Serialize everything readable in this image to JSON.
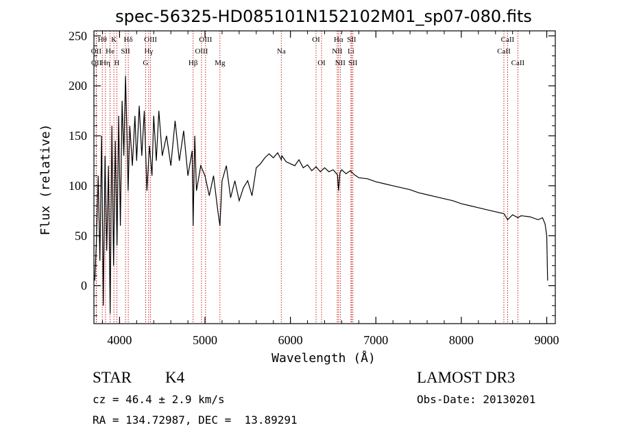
{
  "chart_data": {
    "type": "line",
    "title": "spec-56325-HD085101N152102M01_sp07-080.fits",
    "xlabel": "Wavelength (Å)",
    "ylabel": "Flux (relative)",
    "xlim": [
      3700,
      9100
    ],
    "ylim": [
      -38,
      255
    ],
    "xticks": [
      4000,
      5000,
      6000,
      7000,
      8000,
      9000
    ],
    "yticks": [
      0,
      50,
      100,
      150,
      200,
      250
    ],
    "line_color": "#000000",
    "marker_color": "#c00000",
    "series": [
      {
        "name": "flux",
        "x": [
          3710,
          3730,
          3750,
          3770,
          3790,
          3810,
          3830,
          3850,
          3870,
          3890,
          3910,
          3930,
          3950,
          3970,
          3990,
          4010,
          4030,
          4050,
          4070,
          4090,
          4100,
          4120,
          4150,
          4180,
          4200,
          4230,
          4260,
          4290,
          4320,
          4350,
          4380,
          4400,
          4430,
          4460,
          4500,
          4550,
          4600,
          4650,
          4700,
          4750,
          4800,
          4850,
          4861,
          4880,
          4900,
          4950,
          5000,
          5050,
          5100,
          5150,
          5175,
          5200,
          5250,
          5300,
          5350,
          5400,
          5450,
          5500,
          5550,
          5600,
          5650,
          5700,
          5750,
          5800,
          5850,
          5893,
          5900,
          5950,
          6000,
          6050,
          6100,
          6150,
          6200,
          6250,
          6300,
          6350,
          6400,
          6450,
          6500,
          6550,
          6563,
          6580,
          6600,
          6650,
          6700,
          6750,
          6800,
          6900,
          7000,
          7100,
          7200,
          7300,
          7400,
          7500,
          7600,
          7700,
          7800,
          7900,
          8000,
          8100,
          8200,
          8300,
          8400,
          8500,
          8542,
          8600,
          8662,
          8700,
          8800,
          8900,
          8950,
          8980,
          9000,
          9010
        ],
        "y": [
          5,
          45,
          110,
          25,
          150,
          -20,
          130,
          35,
          120,
          -28,
          160,
          20,
          145,
          40,
          170,
          60,
          185,
          130,
          210,
          140,
          95,
          160,
          120,
          170,
          125,
          180,
          130,
          175,
          95,
          140,
          110,
          170,
          125,
          175,
          130,
          150,
          120,
          165,
          125,
          155,
          110,
          135,
          60,
          150,
          95,
          120,
          110,
          90,
          110,
          75,
          60,
          105,
          120,
          88,
          105,
          85,
          98,
          105,
          90,
          118,
          122,
          128,
          132,
          128,
          133,
          126,
          130,
          124,
          122,
          120,
          126,
          118,
          121,
          115,
          119,
          114,
          118,
          114,
          116,
          111,
          95,
          113,
          116,
          112,
          115,
          111,
          108,
          107,
          104,
          102,
          100,
          98,
          96,
          93,
          91,
          89,
          87,
          85,
          82,
          80,
          78,
          76,
          74,
          72,
          66,
          71,
          68,
          70,
          69,
          66,
          68,
          62,
          50,
          5
        ]
      }
    ],
    "line_markers": [
      {
        "label": "Hθ",
        "x": 3798,
        "row": 1
      },
      {
        "label": "OII",
        "x": 3727,
        "row": 2
      },
      {
        "label": "OII",
        "x": 3729,
        "row": 3
      },
      {
        "label": "He",
        "x": 3889,
        "row": 2
      },
      {
        "label": "Hη",
        "x": 3835,
        "row": 3
      },
      {
        "label": "K",
        "x": 3934,
        "row": 1
      },
      {
        "label": "H",
        "x": 3969,
        "row": 3
      },
      {
        "label": "SII",
        "x": 4070,
        "row": 2
      },
      {
        "label": "Hδ",
        "x": 4102,
        "row": 1
      },
      {
        "label": "OIII",
        "x": 4363,
        "row": 1
      },
      {
        "label": "Hγ",
        "x": 4341,
        "row": 2
      },
      {
        "label": "G",
        "x": 4305,
        "row": 3
      },
      {
        "label": "Hβ",
        "x": 4861,
        "row": 3
      },
      {
        "label": "OIII",
        "x": 5007,
        "row": 1
      },
      {
        "label": "OIII",
        "x": 4959,
        "row": 2
      },
      {
        "label": "Mg",
        "x": 5175,
        "row": 3
      },
      {
        "label": "Na",
        "x": 5893,
        "row": 2
      },
      {
        "label": "OI",
        "x": 6300,
        "row": 1
      },
      {
        "label": "OI",
        "x": 6364,
        "row": 3
      },
      {
        "label": "Hα",
        "x": 6563,
        "row": 1
      },
      {
        "label": "NII",
        "x": 6548,
        "row": 2
      },
      {
        "label": "NII",
        "x": 6583,
        "row": 3
      },
      {
        "label": "SII",
        "x": 6716,
        "row": 1
      },
      {
        "label": "Li",
        "x": 6708,
        "row": 2
      },
      {
        "label": "SII",
        "x": 6731,
        "row": 3
      },
      {
        "label": "CaII",
        "x": 8542,
        "row": 1
      },
      {
        "label": "CaII",
        "x": 8498,
        "row": 2
      },
      {
        "label": "CaII",
        "x": 8662,
        "row": 3
      }
    ]
  },
  "info": {
    "object_class": "STAR",
    "subclass": "K4",
    "survey": "LAMOST DR3",
    "redshift": "cz = 46.4 ± 2.9 km/s",
    "obs_date": "Obs-Date: 20130201",
    "coordinates": "RA = 134.72987, DEC =  13.89291"
  }
}
